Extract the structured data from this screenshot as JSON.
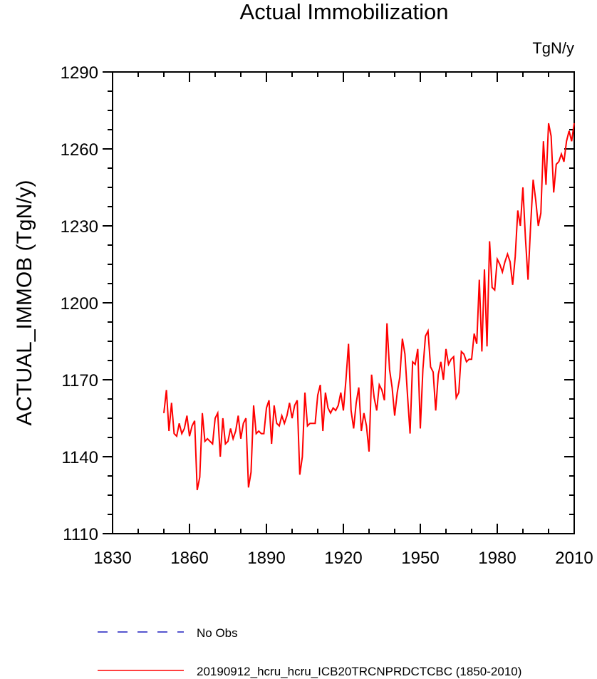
{
  "chart_data": {
    "type": "line",
    "title": "Actual Immobilization",
    "units": "TgN/y",
    "xlabel": "",
    "ylabel": "ACTUAL_IMMOB  (TgN/y)",
    "xlim": [
      1830,
      2010
    ],
    "ylim": [
      1110,
      1290
    ],
    "x_ticks": [
      1830,
      1860,
      1890,
      1920,
      1950,
      1980,
      2010
    ],
    "x_tick_labels": [
      "1830",
      "1860",
      "1890",
      "1920",
      "1950",
      "1980",
      "2010"
    ],
    "y_ticks": [
      1110,
      1140,
      1170,
      1200,
      1230,
      1260,
      1290
    ],
    "y_tick_labels": [
      "1110",
      "1140",
      "1170",
      "1200",
      "1230",
      "1260",
      "1290"
    ],
    "legend": [
      {
        "label": "No Obs",
        "color": "#1f1fbf",
        "style": "dashed"
      },
      {
        "label": "20190912_hcru_hcru_ICB20TRCNPRDCTCBC (1850-2010)",
        "color": "#ff0000",
        "style": "solid"
      }
    ],
    "series": [
      {
        "name": "20190912_hcru_hcru_ICB20TRCNPRDCTCBC (1850-2010)",
        "color": "#ff0000",
        "x": [
          1850,
          1851,
          1852,
          1853,
          1854,
          1855,
          1856,
          1857,
          1858,
          1859,
          1860,
          1861,
          1862,
          1863,
          1864,
          1865,
          1866,
          1867,
          1868,
          1869,
          1870,
          1871,
          1872,
          1873,
          1874,
          1875,
          1876,
          1877,
          1878,
          1879,
          1880,
          1881,
          1882,
          1883,
          1884,
          1885,
          1886,
          1887,
          1888,
          1889,
          1890,
          1891,
          1892,
          1893,
          1894,
          1895,
          1896,
          1897,
          1898,
          1899,
          1900,
          1901,
          1902,
          1903,
          1904,
          1905,
          1906,
          1907,
          1908,
          1909,
          1910,
          1911,
          1912,
          1913,
          1914,
          1915,
          1916,
          1917,
          1918,
          1919,
          1920,
          1921,
          1922,
          1923,
          1924,
          1925,
          1926,
          1927,
          1928,
          1929,
          1930,
          1931,
          1932,
          1933,
          1934,
          1935,
          1936,
          1937,
          1938,
          1939,
          1940,
          1941,
          1942,
          1943,
          1944,
          1945,
          1946,
          1947,
          1948,
          1949,
          1950,
          1951,
          1952,
          1953,
          1954,
          1955,
          1956,
          1957,
          1958,
          1959,
          1960,
          1961,
          1962,
          1963,
          1964,
          1965,
          1966,
          1967,
          1968,
          1969,
          1970,
          1971,
          1972,
          1973,
          1974,
          1975,
          1976,
          1977,
          1978,
          1979,
          1980,
          1981,
          1982,
          1983,
          1984,
          1985,
          1986,
          1987,
          1988,
          1989,
          1990,
          1991,
          1992,
          1993,
          1994,
          1995,
          1996,
          1997,
          1998,
          1999,
          2000,
          2001,
          2002,
          2003,
          2004,
          2005,
          2006,
          2007,
          2008,
          2009,
          2010
        ],
        "y": [
          1157,
          1166,
          1150,
          1161,
          1149,
          1148,
          1153,
          1149,
          1151,
          1156,
          1148,
          1152,
          1154,
          1127,
          1132,
          1157,
          1146,
          1147,
          1146,
          1145,
          1155,
          1157,
          1140,
          1155,
          1145,
          1146,
          1151,
          1147,
          1150,
          1156,
          1147,
          1153,
          1155,
          1128,
          1134,
          1160,
          1149,
          1150,
          1149,
          1149,
          1159,
          1162,
          1145,
          1160,
          1153,
          1152,
          1156,
          1153,
          1156,
          1161,
          1155,
          1160,
          1162,
          1133,
          1140,
          1165,
          1152,
          1153,
          1153,
          1153,
          1164,
          1168,
          1150,
          1165,
          1159,
          1157,
          1159,
          1158,
          1160,
          1165,
          1158,
          1170,
          1184,
          1158,
          1151,
          1161,
          1167,
          1150,
          1157,
          1152,
          1142,
          1172,
          1163,
          1158,
          1168,
          1166,
          1162,
          1192,
          1174,
          1167,
          1156,
          1165,
          1171,
          1186,
          1180,
          1164,
          1149,
          1177,
          1176,
          1182,
          1151,
          1174,
          1187,
          1189,
          1175,
          1173,
          1158,
          1172,
          1177,
          1170,
          1182,
          1176,
          1178,
          1179,
          1163,
          1165,
          1181,
          1180,
          1177,
          1178,
          1178,
          1188,
          1184,
          1209,
          1181,
          1213,
          1183,
          1224,
          1206,
          1205,
          1217,
          1215,
          1212,
          1216,
          1219,
          1216,
          1207,
          1218,
          1236,
          1230,
          1245,
          1225,
          1209,
          1230,
          1248,
          1240,
          1230,
          1235,
          1263,
          1246,
          1270,
          1265,
          1243,
          1254,
          1255,
          1258,
          1255,
          1263,
          1267,
          1263,
          1270
        ]
      }
    ]
  }
}
